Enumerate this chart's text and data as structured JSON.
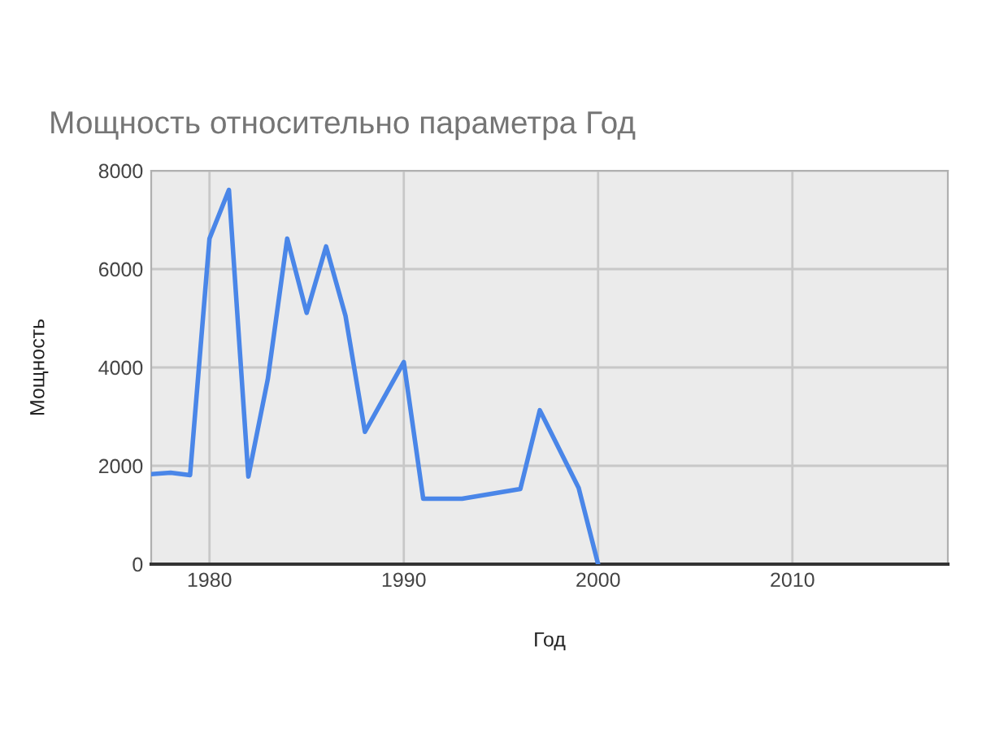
{
  "chart_data": {
    "type": "line",
    "title": "Мощность относительно параметра Год",
    "xlabel": "Год",
    "ylabel": "Мощность",
    "x": [
      1977,
      1978,
      1979,
      1980,
      1981,
      1982,
      1983,
      1984,
      1985,
      1986,
      1987,
      1988,
      1990,
      1991,
      1993,
      1996,
      1997,
      1999,
      2000
    ],
    "series": [
      {
        "color": "#4a86e8",
        "values": [
          1830,
          1860,
          1810,
          6620,
          7610,
          1780,
          3760,
          6620,
          5110,
          6460,
          5050,
          2690,
          4110,
          1330,
          1330,
          1530,
          3130,
          1550,
          0
        ]
      }
    ],
    "xlim": [
      1977,
      2018
    ],
    "xticks": [
      1980,
      1990,
      2000,
      2010
    ],
    "ylim": [
      0,
      8000
    ],
    "yticks": [
      0,
      2000,
      4000,
      6000,
      8000
    ],
    "grid": true,
    "marker": "none",
    "line_style": "solid"
  }
}
